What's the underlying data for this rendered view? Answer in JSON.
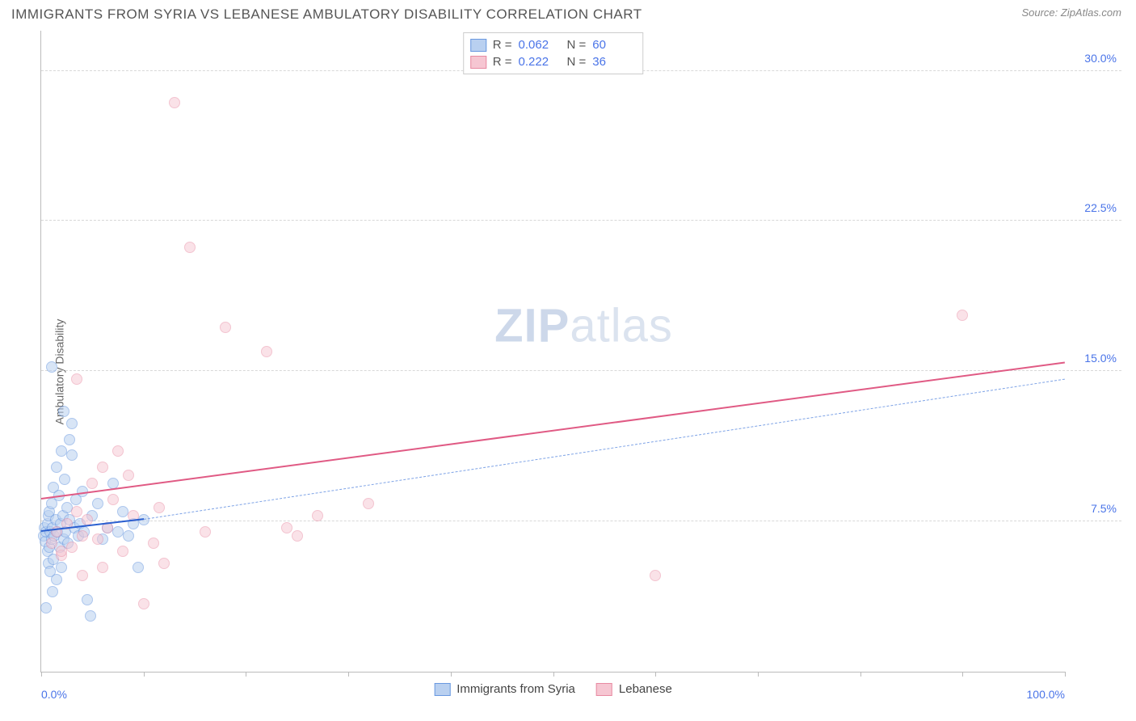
{
  "header": {
    "title": "IMMIGRANTS FROM SYRIA VS LEBANESE AMBULATORY DISABILITY CORRELATION CHART",
    "source_prefix": "Source: ",
    "source_name": "ZipAtlas.com"
  },
  "watermark": {
    "bold": "ZIP",
    "light": "atlas"
  },
  "chart": {
    "type": "scatter",
    "ylabel": "Ambulatory Disability",
    "background_color": "#ffffff",
    "grid_color": "#d8d8d8",
    "axis_color": "#bbbbbb",
    "tick_label_color": "#4a74e8",
    "xlim": [
      0,
      100
    ],
    "ylim": [
      0,
      32
    ],
    "yticks": [
      7.5,
      15.0,
      22.5,
      30.0
    ],
    "ytick_labels": [
      "7.5%",
      "15.0%",
      "22.5%",
      "30.0%"
    ],
    "xticks": [
      0,
      10,
      20,
      30,
      40,
      50,
      60,
      70,
      80,
      90,
      100
    ],
    "xtick_labels_shown": {
      "0": "0.0%",
      "100": "100.0%"
    },
    "marker_radius": 7,
    "marker_stroke_width": 1.5,
    "series": [
      {
        "name": "Immigrants from Syria",
        "fill_color": "#b9d0f0",
        "stroke_color": "#6a99e0",
        "fill_opacity": 0.55,
        "R": "0.062",
        "N": "60",
        "trend": {
          "style": "solid-then-dashed",
          "color_solid": "#2a5fd0",
          "color_dashed": "#7ea3e6",
          "y_at_x0": 7.0,
          "y_at_x10": 7.6,
          "y_at_x100": 14.6,
          "width_solid": 2,
          "width_dashed": 1.5
        },
        "points": [
          [
            0.2,
            6.8
          ],
          [
            0.3,
            7.2
          ],
          [
            0.4,
            6.5
          ],
          [
            0.5,
            7.0
          ],
          [
            0.6,
            6.0
          ],
          [
            0.6,
            7.4
          ],
          [
            0.7,
            5.4
          ],
          [
            0.7,
            7.8
          ],
          [
            0.8,
            6.2
          ],
          [
            0.8,
            8.0
          ],
          [
            0.9,
            5.0
          ],
          [
            0.9,
            7.0
          ],
          [
            1.0,
            6.6
          ],
          [
            1.0,
            8.4
          ],
          [
            1.1,
            4.0
          ],
          [
            1.1,
            7.2
          ],
          [
            1.2,
            5.6
          ],
          [
            1.2,
            9.2
          ],
          [
            1.3,
            6.8
          ],
          [
            1.4,
            7.6
          ],
          [
            1.5,
            4.6
          ],
          [
            1.5,
            10.2
          ],
          [
            1.6,
            7.0
          ],
          [
            1.7,
            8.8
          ],
          [
            1.8,
            6.2
          ],
          [
            1.9,
            7.4
          ],
          [
            2.0,
            11.0
          ],
          [
            2.0,
            5.2
          ],
          [
            2.1,
            7.8
          ],
          [
            2.2,
            6.6
          ],
          [
            2.3,
            9.6
          ],
          [
            2.4,
            7.0
          ],
          [
            2.5,
            8.2
          ],
          [
            2.6,
            6.4
          ],
          [
            2.8,
            7.6
          ],
          [
            3.0,
            10.8
          ],
          [
            3.0,
            12.4
          ],
          [
            3.2,
            7.2
          ],
          [
            3.4,
            8.6
          ],
          [
            3.6,
            6.8
          ],
          [
            3.8,
            7.4
          ],
          [
            4.0,
            9.0
          ],
          [
            4.2,
            7.0
          ],
          [
            4.5,
            3.6
          ],
          [
            4.8,
            2.8
          ],
          [
            5.0,
            7.8
          ],
          [
            5.5,
            8.4
          ],
          [
            6.0,
            6.6
          ],
          [
            6.5,
            7.2
          ],
          [
            7.0,
            9.4
          ],
          [
            7.5,
            7.0
          ],
          [
            8.0,
            8.0
          ],
          [
            8.5,
            6.8
          ],
          [
            9.0,
            7.4
          ],
          [
            9.5,
            5.2
          ],
          [
            10.0,
            7.6
          ],
          [
            1.0,
            15.2
          ],
          [
            2.2,
            13.0
          ],
          [
            2.8,
            11.6
          ],
          [
            0.5,
            3.2
          ]
        ]
      },
      {
        "name": "Lebanese",
        "fill_color": "#f6c6d2",
        "stroke_color": "#e88aa2",
        "fill_opacity": 0.5,
        "R": "0.222",
        "N": "36",
        "trend": {
          "style": "solid",
          "color": "#e05a84",
          "y_at_x0": 8.6,
          "y_at_x100": 15.4,
          "width": 2
        },
        "points": [
          [
            1.0,
            6.4
          ],
          [
            1.5,
            7.0
          ],
          [
            2.0,
            5.8
          ],
          [
            2.5,
            7.4
          ],
          [
            3.0,
            6.2
          ],
          [
            3.5,
            8.0
          ],
          [
            4.0,
            6.8
          ],
          [
            4.5,
            7.6
          ],
          [
            5.0,
            9.4
          ],
          [
            5.5,
            6.6
          ],
          [
            6.0,
            10.2
          ],
          [
            6.5,
            7.2
          ],
          [
            7.0,
            8.6
          ],
          [
            7.5,
            11.0
          ],
          [
            8.0,
            6.0
          ],
          [
            9.0,
            7.8
          ],
          [
            10.0,
            3.4
          ],
          [
            11.0,
            6.4
          ],
          [
            12.0,
            5.4
          ],
          [
            13.0,
            28.4
          ],
          [
            14.5,
            21.2
          ],
          [
            16.0,
            7.0
          ],
          [
            18.0,
            17.2
          ],
          [
            22.0,
            16.0
          ],
          [
            24.0,
            7.2
          ],
          [
            25.0,
            6.8
          ],
          [
            27.0,
            7.8
          ],
          [
            32.0,
            8.4
          ],
          [
            3.5,
            14.6
          ],
          [
            60.0,
            4.8
          ],
          [
            90.0,
            17.8
          ],
          [
            2.0,
            6.0
          ],
          [
            4.0,
            4.8
          ],
          [
            6.0,
            5.2
          ],
          [
            8.5,
            9.8
          ],
          [
            11.5,
            8.2
          ]
        ]
      }
    ],
    "legend_top_labels": {
      "R": "R =",
      "N": "N ="
    },
    "legend_bottom": [
      {
        "label": "Immigrants from Syria",
        "fill": "#b9d0f0",
        "stroke": "#6a99e0"
      },
      {
        "label": "Lebanese",
        "fill": "#f6c6d2",
        "stroke": "#e88aa2"
      }
    ]
  }
}
